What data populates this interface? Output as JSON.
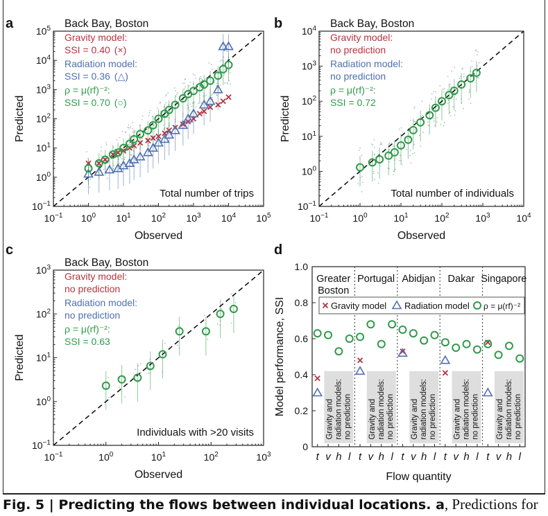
{
  "caption": {
    "label": "Fig. 5 | ",
    "title": "Predicting the flows between individual locations.",
    "tail_bold": " a",
    "tail": ", Predictions for"
  },
  "colors": {
    "gravity": "#b5333f",
    "radiation": "#4f6fb0",
    "rho": "#2f9a4a",
    "dots": "#9aa5a5",
    "axis": "#222222"
  },
  "chart_data": [
    {
      "panel": "a",
      "type": "scatter",
      "title": "Back Bay, Boston",
      "xlabel": "Observed",
      "ylabel": "Predicted",
      "xscale": "log",
      "yscale": "log",
      "xlim": [
        0.1,
        100000
      ],
      "ylim": [
        0.1,
        100000
      ],
      "xticks": [
        "10^-1",
        "10^0",
        "10^1",
        "10^2",
        "10^3",
        "10^4",
        "10^5"
      ],
      "yticks": [
        "10^-1",
        "10^0",
        "10^1",
        "10^2",
        "10^3",
        "10^4",
        "10^5"
      ],
      "note": "Total number of trips",
      "diagonal": true,
      "legend": [
        {
          "text": "Gravity model:",
          "text2": "SSI = 0.40",
          "sym": "(×)",
          "color_key": "gravity"
        },
        {
          "text": "Radiation model:",
          "text2": "SSI = 0.36",
          "sym": "(△)",
          "color_key": "radiation"
        },
        {
          "text": "ρ = μ(rf)⁻²:",
          "text2": "SSI = 0.70",
          "sym": "(○)",
          "color_key": "rho"
        }
      ],
      "series": [
        {
          "name": "Gravity model",
          "marker": "x",
          "color_key": "gravity",
          "x": [
            1,
            2,
            3,
            5,
            7,
            10,
            15,
            20,
            30,
            50,
            70,
            100,
            150,
            200,
            300,
            500,
            700,
            1000,
            1500,
            2000,
            3000,
            5000,
            7000,
            10000
          ],
          "y": [
            3,
            3,
            4,
            6,
            7,
            8,
            10,
            12,
            15,
            18,
            22,
            25,
            32,
            40,
            50,
            65,
            80,
            100,
            150,
            180,
            250,
            300,
            400,
            550
          ]
        },
        {
          "name": "Radiation model",
          "marker": "triangle",
          "color_key": "radiation",
          "x": [
            1,
            2,
            4,
            7,
            10,
            15,
            20,
            30,
            50,
            70,
            100,
            150,
            200,
            300,
            500,
            700,
            1000,
            2000,
            3000,
            5000,
            7000,
            10000
          ],
          "y": [
            1.3,
            1.5,
            1.8,
            2,
            2.5,
            3,
            4,
            5,
            7,
            10,
            15,
            20,
            28,
            40,
            60,
            100,
            150,
            300,
            400,
            1000,
            30000,
            30000
          ]
        },
        {
          "name": "ρ = μ(rf)⁻²",
          "marker": "circle",
          "color_key": "rho",
          "x": [
            1,
            2,
            3,
            5,
            7,
            10,
            15,
            20,
            30,
            50,
            70,
            100,
            150,
            200,
            300,
            500,
            700,
            1000,
            1500,
            2000,
            3000,
            5000,
            7000,
            10000
          ],
          "y": [
            2,
            3,
            4,
            6,
            7,
            10,
            14,
            20,
            30,
            40,
            60,
            100,
            150,
            200,
            300,
            500,
            700,
            900,
            1200,
            1500,
            2000,
            3000,
            5000,
            7000
          ]
        }
      ]
    },
    {
      "panel": "b",
      "type": "scatter",
      "title": "Back Bay, Boston",
      "xlabel": "Observed",
      "ylabel": "Predicted",
      "xscale": "log",
      "yscale": "log",
      "xlim": [
        0.1,
        10000
      ],
      "ylim": [
        0.1,
        10000
      ],
      "xticks": [
        "10^-1",
        "10^0",
        "10^1",
        "10^2",
        "10^3",
        "10^4"
      ],
      "yticks": [
        "10^-1",
        "10^0",
        "10^1",
        "10^2",
        "10^3",
        "10^4"
      ],
      "note": "Total number of individuals",
      "diagonal": true,
      "legend": [
        {
          "text": "Gravity model:",
          "text2": "no prediction",
          "sym": "",
          "color_key": "gravity"
        },
        {
          "text": "Radiation model:",
          "text2": "no prediction",
          "sym": "",
          "color_key": "radiation"
        },
        {
          "text": "ρ = μ(rf)⁻²:",
          "text2": "SSI = 0.72",
          "sym": "",
          "color_key": "rho"
        }
      ],
      "series": [
        {
          "name": "ρ = μ(rf)⁻²",
          "marker": "circle",
          "color_key": "rho",
          "x": [
            1,
            2,
            3,
            5,
            7,
            10,
            15,
            20,
            30,
            50,
            70,
            100,
            150,
            200,
            300,
            500,
            700
          ],
          "y": [
            1.3,
            1.8,
            2.2,
            2.8,
            3.5,
            5.5,
            8,
            15,
            25,
            40,
            65,
            100,
            150,
            200,
            300,
            450,
            650
          ]
        }
      ]
    },
    {
      "panel": "c",
      "type": "scatter",
      "title": "Back Bay, Boston",
      "xlabel": "Observed",
      "ylabel": "Predicted",
      "xscale": "log",
      "yscale": "log",
      "xlim": [
        0.1,
        1000
      ],
      "ylim": [
        0.1,
        1000
      ],
      "xticks": [
        "10^-1",
        "10^0",
        "10^1",
        "10^2",
        "10^3"
      ],
      "yticks": [
        "10^-1",
        "10^0",
        "10^1",
        "10^2",
        "10^3"
      ],
      "note": "Individuals with >20 visits",
      "diagonal": true,
      "legend": [
        {
          "text": "Gravity model:",
          "text2": "no prediction",
          "sym": "",
          "color_key": "gravity"
        },
        {
          "text": "Radiation model:",
          "text2": "no prediction",
          "sym": "",
          "color_key": "radiation"
        },
        {
          "text": "ρ = μ(rf)⁻²:",
          "text2": "SSI = 0.63",
          "sym": "",
          "color_key": "rho"
        }
      ],
      "series": [
        {
          "name": "ρ = μ(rf)⁻²",
          "marker": "circle",
          "color_key": "rho",
          "x": [
            1,
            2,
            4,
            7,
            12,
            25,
            80,
            150,
            270
          ],
          "y": [
            2.3,
            3.2,
            3.5,
            6.5,
            12,
            40,
            40,
            100,
            130
          ]
        }
      ]
    },
    {
      "panel": "d",
      "type": "scatter",
      "xlabel": "Flow quantity",
      "ylabel": "Model performance, SSI",
      "ylim": [
        0,
        1.0
      ],
      "yticks": [
        0,
        0.2,
        0.4,
        0.6,
        0.8,
        1.0
      ],
      "xticks": [
        "t",
        "v",
        "h",
        "l",
        "t",
        "v",
        "h",
        "l",
        "t",
        "v",
        "h",
        "l",
        "t",
        "v",
        "h",
        "l",
        "t",
        "v",
        "h",
        "l"
      ],
      "groups": [
        "Greater Boston",
        "Portugal",
        "Abidjan",
        "Dakar",
        "Singapore"
      ],
      "no_prediction_text": "Gravity and radiation models: no prediction",
      "legend": [
        "Gravity model",
        "Radiation model",
        "ρ = μ(rf)⁻²"
      ],
      "series": [
        {
          "name": "Gravity model",
          "marker": "x",
          "color_key": "gravity",
          "values": [
            0.38,
            null,
            null,
            null,
            0.48,
            null,
            null,
            null,
            0.53,
            null,
            null,
            null,
            0.41,
            null,
            null,
            null,
            0.58,
            null,
            null,
            null
          ]
        },
        {
          "name": "Radiation model",
          "marker": "triangle",
          "color_key": "radiation",
          "values": [
            0.3,
            null,
            null,
            null,
            0.42,
            null,
            null,
            null,
            0.52,
            null,
            null,
            null,
            0.48,
            null,
            null,
            null,
            0.3,
            null,
            null,
            null
          ]
        },
        {
          "name": "ρ = μ(rf)⁻²",
          "marker": "circle",
          "color_key": "rho",
          "values": [
            0.63,
            0.62,
            0.53,
            0.6,
            0.61,
            0.68,
            0.57,
            0.68,
            0.65,
            0.63,
            0.59,
            0.62,
            0.58,
            0.55,
            0.57,
            0.54,
            0.57,
            0.51,
            0.56,
            0.49
          ]
        }
      ]
    }
  ]
}
